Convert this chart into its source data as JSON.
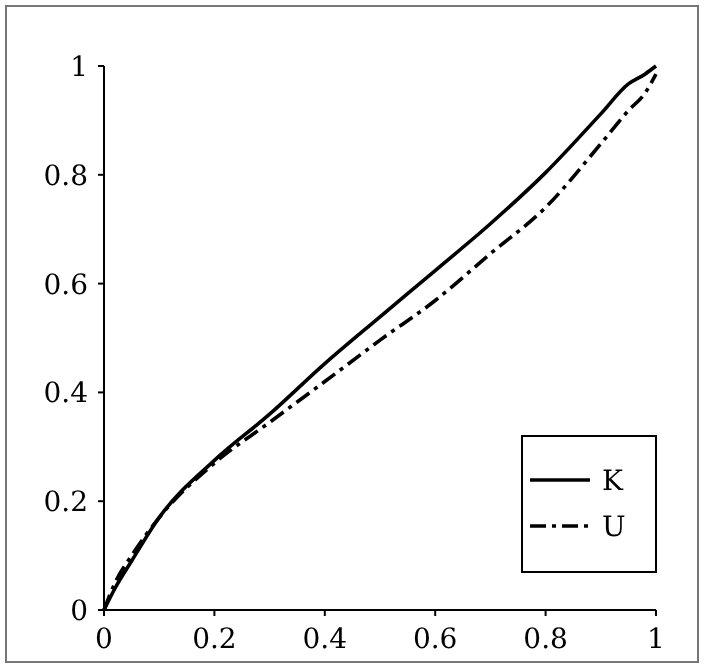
{
  "chart_data": {
    "type": "line",
    "x": [
      0,
      0.02,
      0.05,
      0.1,
      0.2,
      0.3,
      0.4,
      0.5,
      0.6,
      0.7,
      0.8,
      0.9,
      0.95,
      0.98,
      1
    ],
    "series": [
      {
        "name": "K",
        "color": "#000000",
        "line_style": "solid",
        "values": [
          0,
          0.04,
          0.09,
          0.17,
          0.275,
          0.36,
          0.453,
          0.539,
          0.624,
          0.71,
          0.804,
          0.912,
          0.967,
          0.985,
          1
        ]
      },
      {
        "name": "U",
        "color": "#000000",
        "line_style": "dashdot",
        "values": [
          0,
          0.05,
          0.1,
          0.17,
          0.27,
          0.345,
          0.42,
          0.496,
          0.569,
          0.655,
          0.74,
          0.857,
          0.918,
          0.95,
          0.985
        ]
      }
    ],
    "xlim": [
      0,
      1
    ],
    "ylim": [
      0,
      1
    ],
    "xticks": [
      0,
      0.2,
      0.4,
      0.6,
      0.8,
      1
    ],
    "yticks": [
      0,
      0.2,
      0.4,
      0.6,
      0.8,
      1
    ],
    "legend": "bottom right",
    "grid": false
  }
}
